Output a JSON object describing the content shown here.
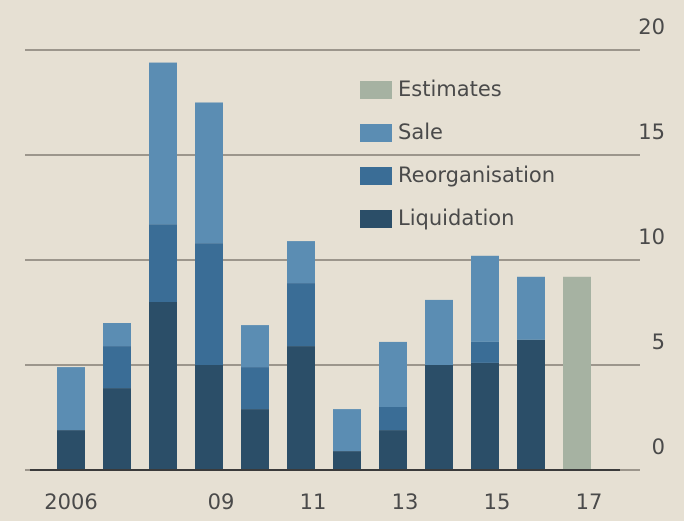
{
  "chart_data": {
    "type": "stacked_bar",
    "categories": [
      "2006",
      null,
      null,
      "09",
      null,
      "11",
      null,
      "13",
      null,
      "15",
      null,
      "17"
    ],
    "series": [
      {
        "name": "Liquidation",
        "color": "#2b4e68",
        "values": [
          1.9,
          3.9,
          8.0,
          5.0,
          2.9,
          5.9,
          0.9,
          1.9,
          5.0,
          5.1,
          6.2,
          null
        ]
      },
      {
        "name": "Reorganisation",
        "color": "#3a6d96",
        "values": [
          null,
          2.0,
          3.7,
          5.8,
          2.0,
          3.0,
          null,
          1.1,
          null,
          1.0,
          null,
          null
        ]
      },
      {
        "name": "Sale",
        "color": "#5b8db3",
        "values": [
          3.0,
          1.1,
          7.7,
          6.7,
          2.0,
          2.0,
          2.0,
          3.1,
          3.1,
          4.1,
          3.0,
          null
        ]
      },
      {
        "name": "Estimates",
        "color": "#a6b2a2",
        "values": [
          null,
          null,
          null,
          null,
          null,
          null,
          null,
          null,
          null,
          null,
          null,
          9.2
        ]
      }
    ],
    "ylim": [
      0,
      20
    ],
    "yticks": [
      0,
      5,
      10,
      15,
      20
    ],
    "grid": true,
    "legend": "top-right"
  }
}
